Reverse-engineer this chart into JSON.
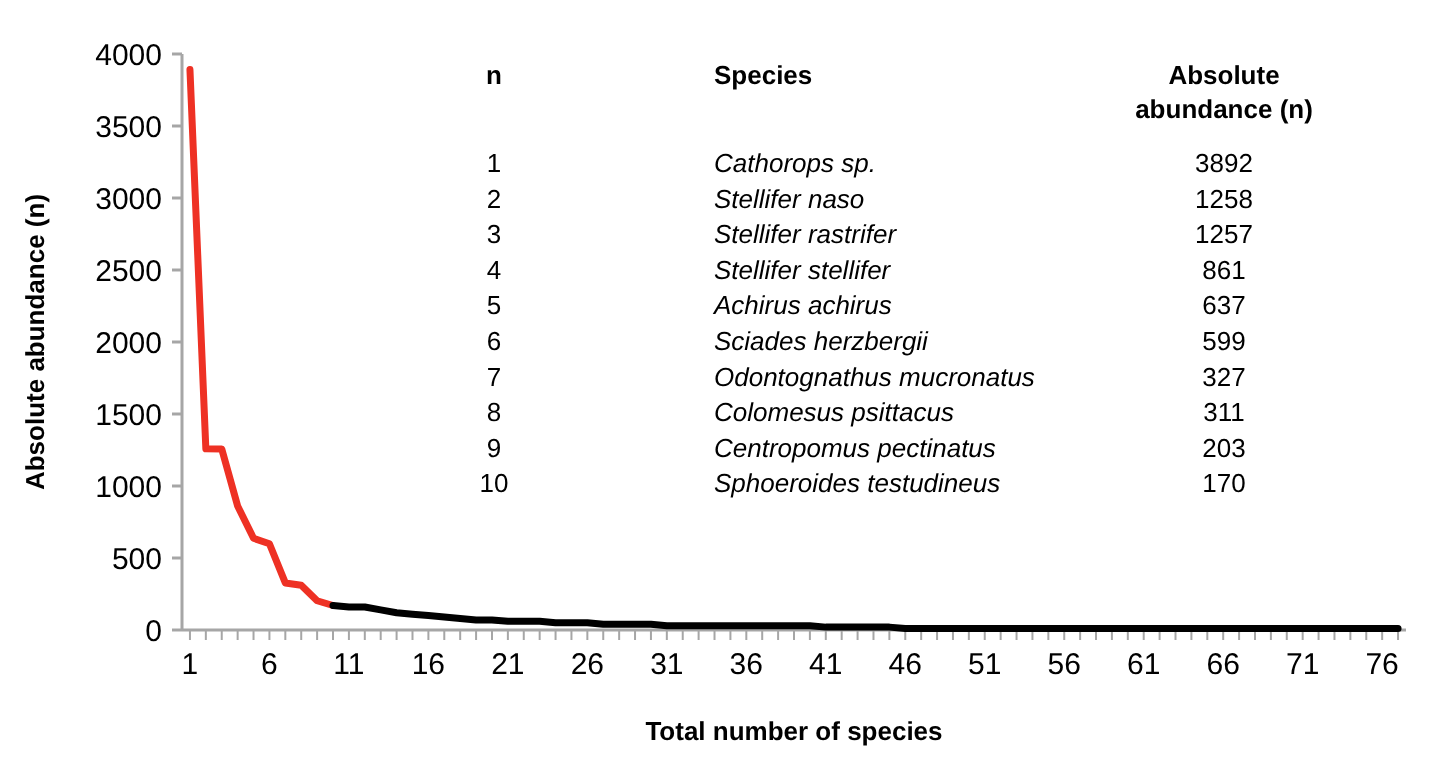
{
  "chart_data": {
    "type": "line",
    "xlabel": "Total number of species",
    "ylabel": "Absolute abundance (n)",
    "x": [
      1,
      2,
      3,
      4,
      5,
      6,
      7,
      8,
      9,
      10,
      11,
      12,
      13,
      14,
      15,
      16,
      17,
      18,
      19,
      20,
      21,
      22,
      23,
      24,
      25,
      26,
      27,
      28,
      29,
      30,
      31,
      32,
      33,
      34,
      35,
      36,
      37,
      38,
      39,
      40,
      41,
      42,
      43,
      44,
      45,
      46,
      47,
      48,
      49,
      50,
      51,
      52,
      53,
      54,
      55,
      56,
      57,
      58,
      59,
      60,
      61,
      62,
      63,
      64,
      65,
      66,
      67,
      68,
      69,
      70,
      71,
      72,
      73,
      74,
      75,
      76,
      77
    ],
    "xlim": [
      0.5,
      77.5
    ],
    "xticks": [
      1,
      6,
      11,
      16,
      21,
      26,
      31,
      36,
      41,
      46,
      51,
      56,
      61,
      66,
      71,
      76
    ],
    "series": [
      {
        "color": "#ee3124",
        "values": [
          3892,
          1258,
          1257,
          861,
          637,
          599,
          327,
          311,
          203,
          170,
          null,
          null,
          null,
          null,
          null,
          null,
          null,
          null,
          null,
          null,
          null,
          null,
          null,
          null,
          null,
          null,
          null,
          null,
          null,
          null,
          null,
          null,
          null,
          null,
          null,
          null,
          null,
          null,
          null,
          null,
          null,
          null,
          null,
          null,
          null,
          null,
          null,
          null,
          null,
          null,
          null,
          null,
          null,
          null,
          null,
          null,
          null,
          null,
          null,
          null,
          null,
          null,
          null,
          null,
          null,
          null,
          null,
          null,
          null,
          null,
          null,
          null,
          null,
          null,
          null,
          null,
          null
        ]
      },
      {
        "color": "#000000",
        "values": [
          null,
          null,
          null,
          null,
          null,
          null,
          null,
          null,
          null,
          170,
          160,
          160,
          140,
          120,
          110,
          100,
          90,
          80,
          70,
          70,
          60,
          60,
          60,
          50,
          50,
          50,
          40,
          40,
          40,
          40,
          30,
          30,
          30,
          30,
          30,
          30,
          30,
          30,
          30,
          30,
          20,
          20,
          20,
          20,
          20,
          10,
          10,
          10,
          10,
          10,
          10,
          10,
          10,
          10,
          10,
          10,
          10,
          10,
          10,
          10,
          10,
          10,
          10,
          10,
          10,
          10,
          10,
          10,
          10,
          10,
          10,
          10,
          10,
          10,
          10,
          10,
          10
        ]
      }
    ],
    "ylim": [
      0,
      4000
    ],
    "yticks": [
      0,
      500,
      1000,
      1500,
      2000,
      2500,
      3000,
      3500,
      4000
    ],
    "marker": "none",
    "line_style": "solid",
    "annotations": [
      "n",
      "Species",
      "Absolute abundance (n)",
      "1",
      "Cathorops sp.",
      "3892",
      "2",
      "Stellifer naso",
      "1258",
      "3",
      "Stellifer rastrifer",
      "1257",
      "4",
      "Stellifer stellifer",
      "861",
      "5",
      "Achirus achirus",
      "637",
      "6",
      "Sciades herzbergii",
      "599",
      "7",
      "Odontognathus mucronatus",
      "327",
      "8",
      "Colomesus psittacus",
      "311",
      "9",
      "Centropomus pectinatus",
      "203",
      "10",
      "Sphoeroides testudineus",
      "170"
    ]
  }
}
